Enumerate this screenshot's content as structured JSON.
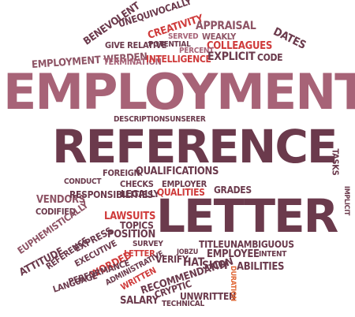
{
  "words": {
    "w01": "benevolent",
    "w02": "unequivocally",
    "w03": "creativity",
    "w04": "appraisal",
    "w05": "give relative",
    "w06": "served",
    "w07": "weakly",
    "w08": "dates",
    "w09": "employment werden",
    "w10": "potential",
    "w11": "colleagues",
    "w12": "termination",
    "w13": "intelligence",
    "w14": "percent",
    "w15": "explicit",
    "w16": "code",
    "w17": "employment",
    "w18": "descriptionsunserer",
    "w19": "reference",
    "w20": "tasks",
    "w21": "implicit",
    "w22": "foreign",
    "w23": "qualifications",
    "w24": "conduct",
    "w25": "checks",
    "w26": "employer",
    "w27": "legally",
    "w28": "qualities",
    "w29": "grades",
    "w30": "vendors",
    "w31": "responsibilities",
    "w32": "codified",
    "w33": "euphemistically",
    "w34": "lawsuits",
    "w35": "letter",
    "w36": "express",
    "w37": "topics",
    "w38": "position",
    "w39": "reference",
    "w40": "survey",
    "w41": "attitude",
    "w42": "executive",
    "w43": "worded",
    "w44": "letter",
    "w45": "jobzu",
    "w46": "titleunambiguous",
    "w47": "employee",
    "w48": "intent",
    "w49": "recommendation",
    "w50": "verify",
    "w51": "language",
    "w52": "performance",
    "w53": "written",
    "w54": "administrative",
    "w55": "hat",
    "w56": "sich",
    "w57": "abilities",
    "w58": "cryptic",
    "w59": "unwritten",
    "w60": "salary",
    "w61": "technical",
    "w62": "duration"
  }
}
